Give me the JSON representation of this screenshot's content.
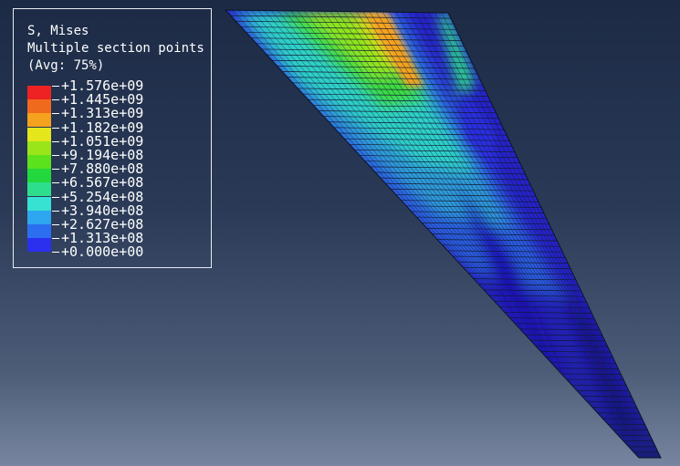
{
  "legend": {
    "title": "S, Mises",
    "subtitle": "Multiple section points",
    "averaging": "(Avg: 75%)",
    "ticks": [
      "+1.576e+09",
      "+1.445e+09",
      "+1.313e+09",
      "+1.182e+09",
      "+1.051e+09",
      "+9.194e+08",
      "+7.880e+08",
      "+6.567e+08",
      "+5.254e+08",
      "+3.940e+08",
      "+2.627e+08",
      "+1.313e+08",
      "+0.000e+00"
    ],
    "colors": [
      "#ee2222",
      "#f06a1e",
      "#f5a21e",
      "#e6e61c",
      "#9ae51a",
      "#5ce21c",
      "#22d83c",
      "#2ddf8c",
      "#38e2d2",
      "#2ea6f0",
      "#2c6ef0",
      "#2a30ee"
    ]
  },
  "model": {
    "mesh_color": "#101a33",
    "contour_palette": [
      "#1d0ec2",
      "#2a2ee0",
      "#2c5de0",
      "#2e9bd8",
      "#2fd0c8",
      "#2ddf8c",
      "#3ada43",
      "#6ddd20",
      "#a8e51a",
      "#e6d41c",
      "#f5a21e"
    ]
  }
}
